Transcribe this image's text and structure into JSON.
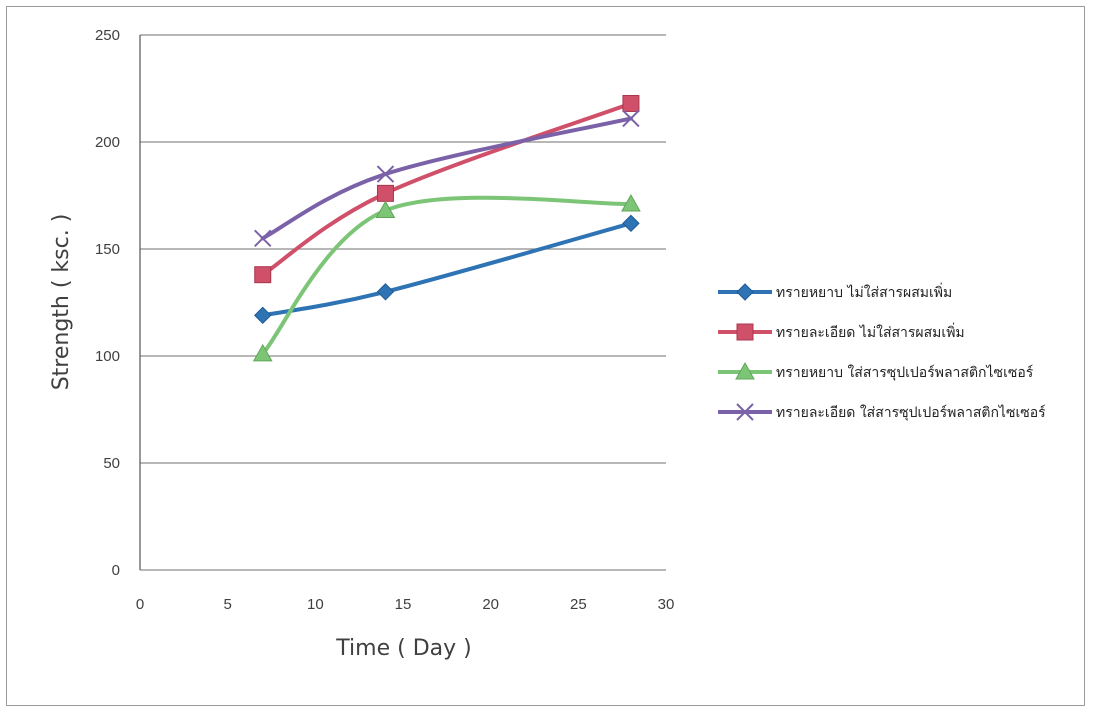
{
  "chart_data": {
    "type": "line",
    "xlabel": "Time ( Day )",
    "ylabel": "Strength ( ksc. )",
    "xlim": [
      0,
      30
    ],
    "ylim": [
      0,
      250
    ],
    "xticks": [
      0,
      5,
      10,
      15,
      20,
      25,
      30
    ],
    "yticks": [
      0,
      50,
      100,
      150,
      200,
      250
    ],
    "grid": "horizontal",
    "legend_position": "right",
    "series": [
      {
        "name": "ทรายหยาบ ไม่ใส่สารผสมเพิ่ม",
        "color": "#2e74b5",
        "marker": "diamond",
        "x": [
          7,
          14,
          28
        ],
        "y": [
          119,
          130,
          162
        ]
      },
      {
        "name": "ทรายละเอียด ไม่ใส่สารผสมเพิ่ม",
        "color": "#d0506a",
        "marker": "square",
        "x": [
          7,
          14,
          28
        ],
        "y": [
          138,
          176,
          218
        ]
      },
      {
        "name": "ทรายหยาบ ใส่สารซุปเปอร์พลาสติกไซเซอร์",
        "color": "#7cc576",
        "marker": "triangle",
        "x": [
          7,
          14,
          28
        ],
        "y": [
          101,
          168,
          171
        ]
      },
      {
        "name": "ทรายละเอียด ใส่สารซุปเปอร์พลาสติกไซเซอร์",
        "color": "#7b62a8",
        "marker": "x",
        "x": [
          7,
          14,
          28
        ],
        "y": [
          155,
          185,
          211
        ]
      }
    ]
  }
}
